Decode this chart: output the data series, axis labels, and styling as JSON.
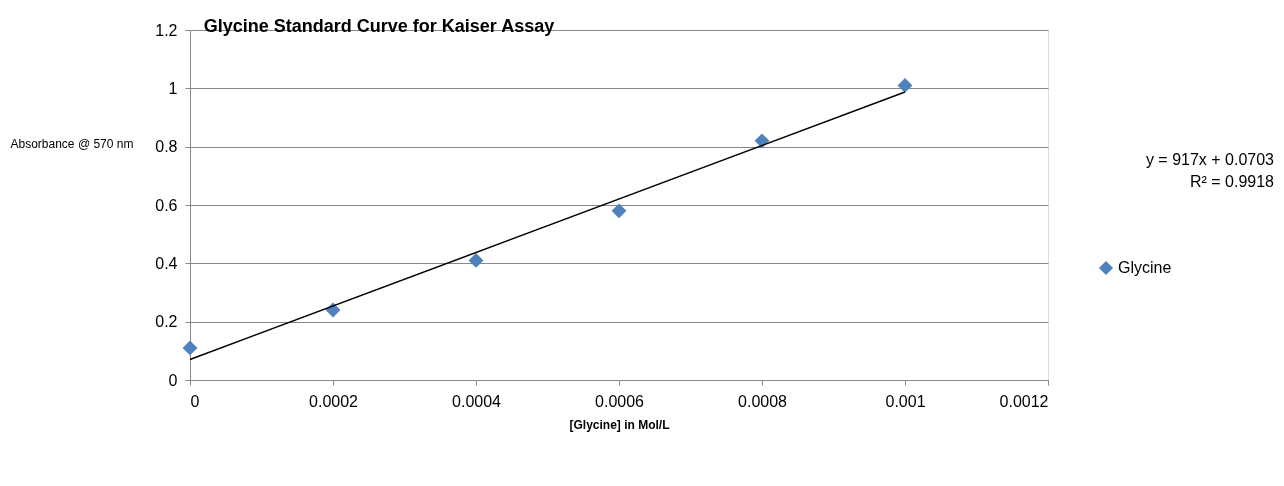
{
  "chart_data": {
    "type": "scatter",
    "title": "Glycine Standard Curve for Kaiser Assay",
    "xlabel": "[Glycine] in Mol/L",
    "ylabel": "Absorbance @ 570 nm",
    "x": [
      0,
      0.0002,
      0.0004,
      0.0006,
      0.0008,
      0.001
    ],
    "series": [
      {
        "name": "Glycine",
        "color": "#4f81bd",
        "marker": "diamond",
        "values": [
          0.11,
          0.24,
          0.41,
          0.58,
          0.82,
          1.01
        ]
      },
      {
        "type": "line",
        "color": "#000000",
        "x": [
          0,
          0.001
        ],
        "values": [
          0.0703,
          0.9873
        ]
      }
    ],
    "xlim": [
      0,
      0.0012
    ],
    "xticks": [
      0,
      0.0002,
      0.0004,
      0.0006,
      0.0008,
      0.001,
      0.0012
    ],
    "ylim": [
      0,
      1.2
    ],
    "yticks": [
      0,
      0.2,
      0.4,
      0.6,
      0.8,
      1,
      1.2
    ],
    "annotations": [
      "y = 917x + 0.0703\nR² = 0.9918"
    ],
    "grid": "y",
    "legend": "right"
  }
}
